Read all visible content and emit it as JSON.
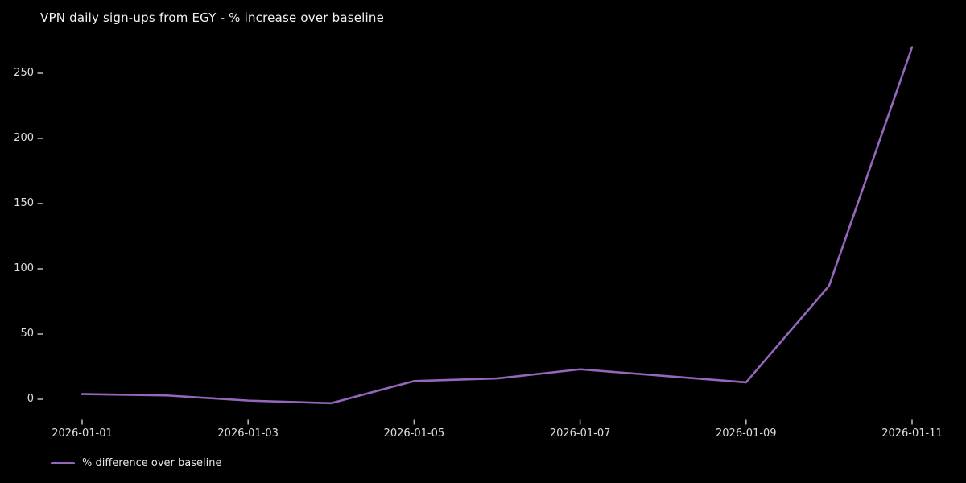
{
  "chart": {
    "title": "VPN daily sign-ups from EGY - % increase over baseline",
    "colors": {
      "background": "#000000",
      "line": "#9467bd",
      "title_text": "#f2f2f2",
      "tick_text": "#dedede",
      "tick_mark": "#b4b4b4"
    }
  },
  "chart_data": {
    "type": "line",
    "title": "VPN daily sign-ups from EGY - % increase over baseline",
    "x": [
      "2026-01-01",
      "2026-01-02",
      "2026-01-03",
      "2026-01-04",
      "2026-01-05",
      "2026-01-06",
      "2026-01-07",
      "2026-01-08",
      "2026-01-09",
      "2026-01-10",
      "2026-01-11"
    ],
    "series": [
      {
        "name": "% difference over baseline",
        "color": "#9467bd",
        "values": [
          4,
          3,
          -1,
          -3,
          14,
          16,
          23,
          18,
          13,
          87,
          270
        ]
      }
    ],
    "xlabel": "",
    "ylabel": "",
    "y_ticks": [
      0,
      50,
      100,
      150,
      200,
      250
    ],
    "x_tick_indices": [
      0,
      2,
      4,
      6,
      8,
      10
    ],
    "x_tick_labels": [
      "2026-01-01",
      "2026-01-03",
      "2026-01-05",
      "2026-01-07",
      "2026-01-09",
      "2026-01-11"
    ],
    "ylim": [
      -15,
      280
    ],
    "grid": false,
    "markers": false,
    "legend_position": "lower-left-outside",
    "background": "#000000"
  }
}
